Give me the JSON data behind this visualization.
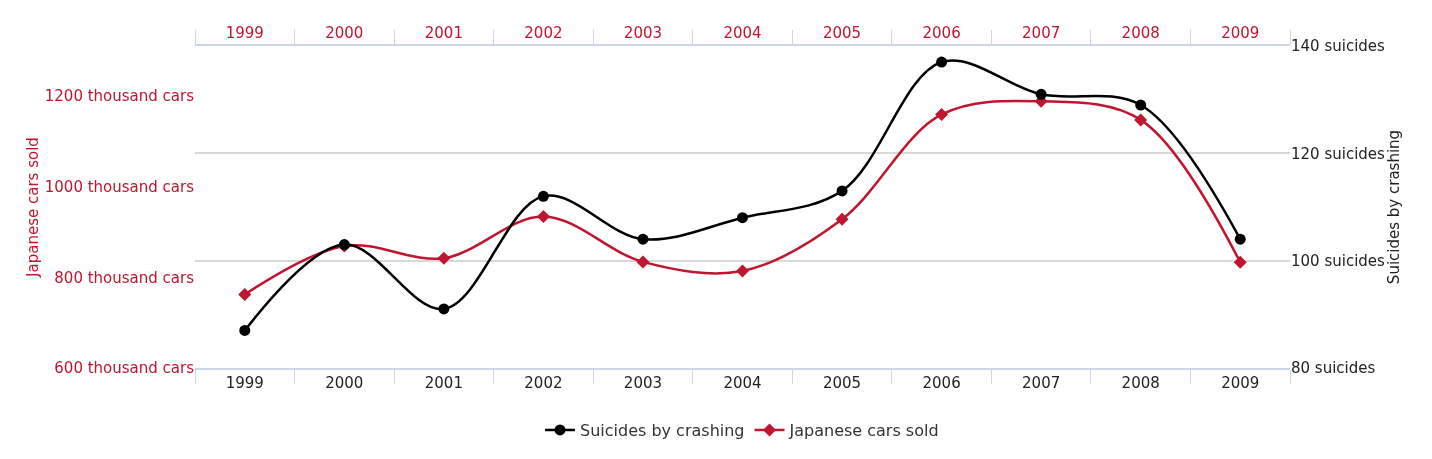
{
  "chart_data": {
    "type": "line",
    "x": [
      1999,
      2000,
      2001,
      2002,
      2003,
      2004,
      2005,
      2006,
      2007,
      2008,
      2009
    ],
    "xlim": [
      1998.5,
      2009.5
    ],
    "xticks": [
      1999,
      2000,
      2001,
      2002,
      2003,
      2004,
      2005,
      2006,
      2007,
      2008,
      2009
    ],
    "x2lim": [
      1998.5,
      2009.5
    ],
    "x2ticks": [
      1999,
      2000,
      2001,
      2002,
      2003,
      2004,
      2005,
      2006,
      2007,
      2008,
      2009
    ],
    "ylabel": "Japanese cars sold",
    "y2label": "Suicides by crashing",
    "ylim": [
      600,
      1310
    ],
    "yticks": [
      {
        "value": 600,
        "label": "600 thousand cars"
      },
      {
        "value": 800,
        "label": "800 thousand cars"
      },
      {
        "value": 1000,
        "label": "1000 thousand cars"
      },
      {
        "value": 1200,
        "label": "1200 thousand cars"
      }
    ],
    "y2lim": [
      80,
      140
    ],
    "y2ticks": [
      {
        "value": 80,
        "label": "80 suicides"
      },
      {
        "value": 100,
        "label": "100 suicides"
      },
      {
        "value": 120,
        "label": "120 suicides"
      },
      {
        "value": 140,
        "label": "140 suicides"
      }
    ],
    "grid": true,
    "legend": "bottom",
    "series": [
      {
        "name": "Suicides by crashing",
        "color": "#000000",
        "axis": "y2",
        "marker": "circle",
        "values": [
          87,
          103,
          91,
          112,
          104,
          108,
          113,
          137,
          131,
          129,
          104
        ]
      },
      {
        "name": "Japanese cars sold",
        "color": "#c0152f",
        "marker": "diamond",
        "values": [
          762,
          869,
          842,
          934,
          834,
          814,
          928,
          1159,
          1188,
          1147,
          833
        ]
      }
    ]
  }
}
